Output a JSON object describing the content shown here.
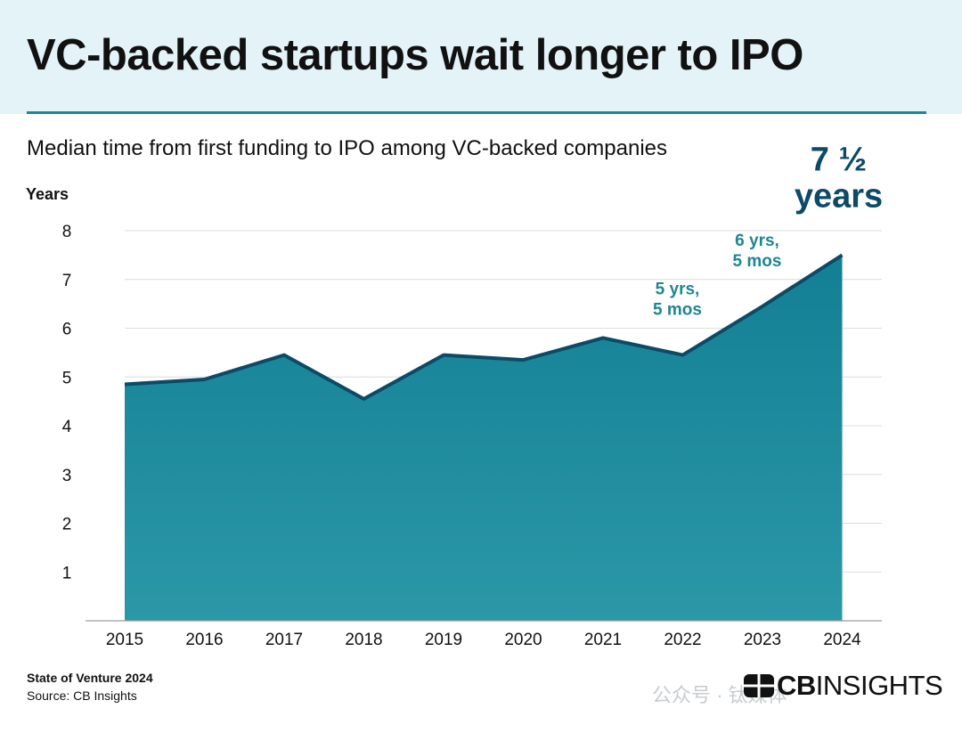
{
  "title": "VC-backed startups wait longer to IPO",
  "subtitle": "Median time from first funding to IPO among VC-backed companies",
  "footer": {
    "title": "State of Venture 2024",
    "source": "Source: CB Insights"
  },
  "logo": {
    "cb": "CB",
    "insights": "INSIGHTS"
  },
  "watermark": "公众号 · 钛媒体",
  "colors": {
    "header_bg": "#e3f3f8",
    "accent": "#1f8593",
    "line": "#0c4a66",
    "area_top": "#137f94",
    "area_bottom": "#2b98a8",
    "annotation": "#1f8593",
    "callout": "#0c4a66"
  },
  "chart_data": {
    "type": "area",
    "ylabel": "Years",
    "xlabel": "",
    "ylim": [
      0,
      8
    ],
    "yticks": [
      "1",
      "2",
      "3",
      "4",
      "5",
      "6",
      "7",
      "8"
    ],
    "grid": true,
    "categories": [
      "2015",
      "2016",
      "2017",
      "2018",
      "2019",
      "2020",
      "2021",
      "2022",
      "2023",
      "2024"
    ],
    "values": [
      4.85,
      4.95,
      5.45,
      4.55,
      5.45,
      5.35,
      5.8,
      5.45,
      6.45,
      7.5
    ],
    "annotations": [
      {
        "category": "2022",
        "lines": [
          "5 yrs,",
          "5 mos"
        ],
        "style": "small"
      },
      {
        "category": "2023",
        "lines": [
          "6 yrs,",
          "5 mos"
        ],
        "style": "small"
      },
      {
        "category": "2024",
        "lines": [
          "7 ½",
          "years"
        ],
        "style": "large"
      }
    ]
  }
}
